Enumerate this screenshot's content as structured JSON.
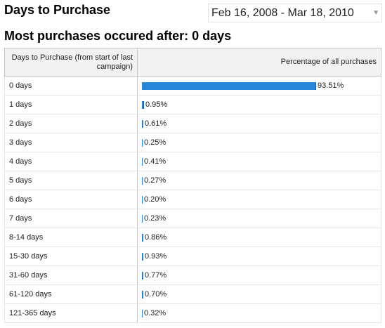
{
  "header": {
    "title": "Days to Purchase",
    "date_range": "Feb 16, 2008 - Mar 18, 2010"
  },
  "summary": {
    "text": "Most purchases occured after:",
    "value": "0 days"
  },
  "table": {
    "columns": [
      "Days to Purchase (from start of last campaign)",
      "Percentage of all purchases"
    ],
    "rows": [
      {
        "label": "0 days",
        "percent": 93.51,
        "display": "93.51%"
      },
      {
        "label": "1 days",
        "percent": 0.95,
        "display": "0.95%"
      },
      {
        "label": "2 days",
        "percent": 0.61,
        "display": "0.61%"
      },
      {
        "label": "3 days",
        "percent": 0.25,
        "display": "0.25%"
      },
      {
        "label": "4 days",
        "percent": 0.41,
        "display": "0.41%"
      },
      {
        "label": "5 days",
        "percent": 0.27,
        "display": "0.27%"
      },
      {
        "label": "6 days",
        "percent": 0.2,
        "display": "0.20%"
      },
      {
        "label": "7 days",
        "percent": 0.23,
        "display": "0.23%"
      },
      {
        "label": "8-14 days",
        "percent": 0.86,
        "display": "0.86%"
      },
      {
        "label": "15-30 days",
        "percent": 0.93,
        "display": "0.93%"
      },
      {
        "label": "31-60 days",
        "percent": 0.77,
        "display": "0.77%"
      },
      {
        "label": "61-120 days",
        "percent": 0.7,
        "display": "0.70%"
      },
      {
        "label": "121-365 days",
        "percent": 0.32,
        "display": "0.32%"
      }
    ]
  },
  "colors": {
    "bar": "#2785d9",
    "bar_edge": "#1c5a9e",
    "header_bg": "#f2f2f2"
  }
}
